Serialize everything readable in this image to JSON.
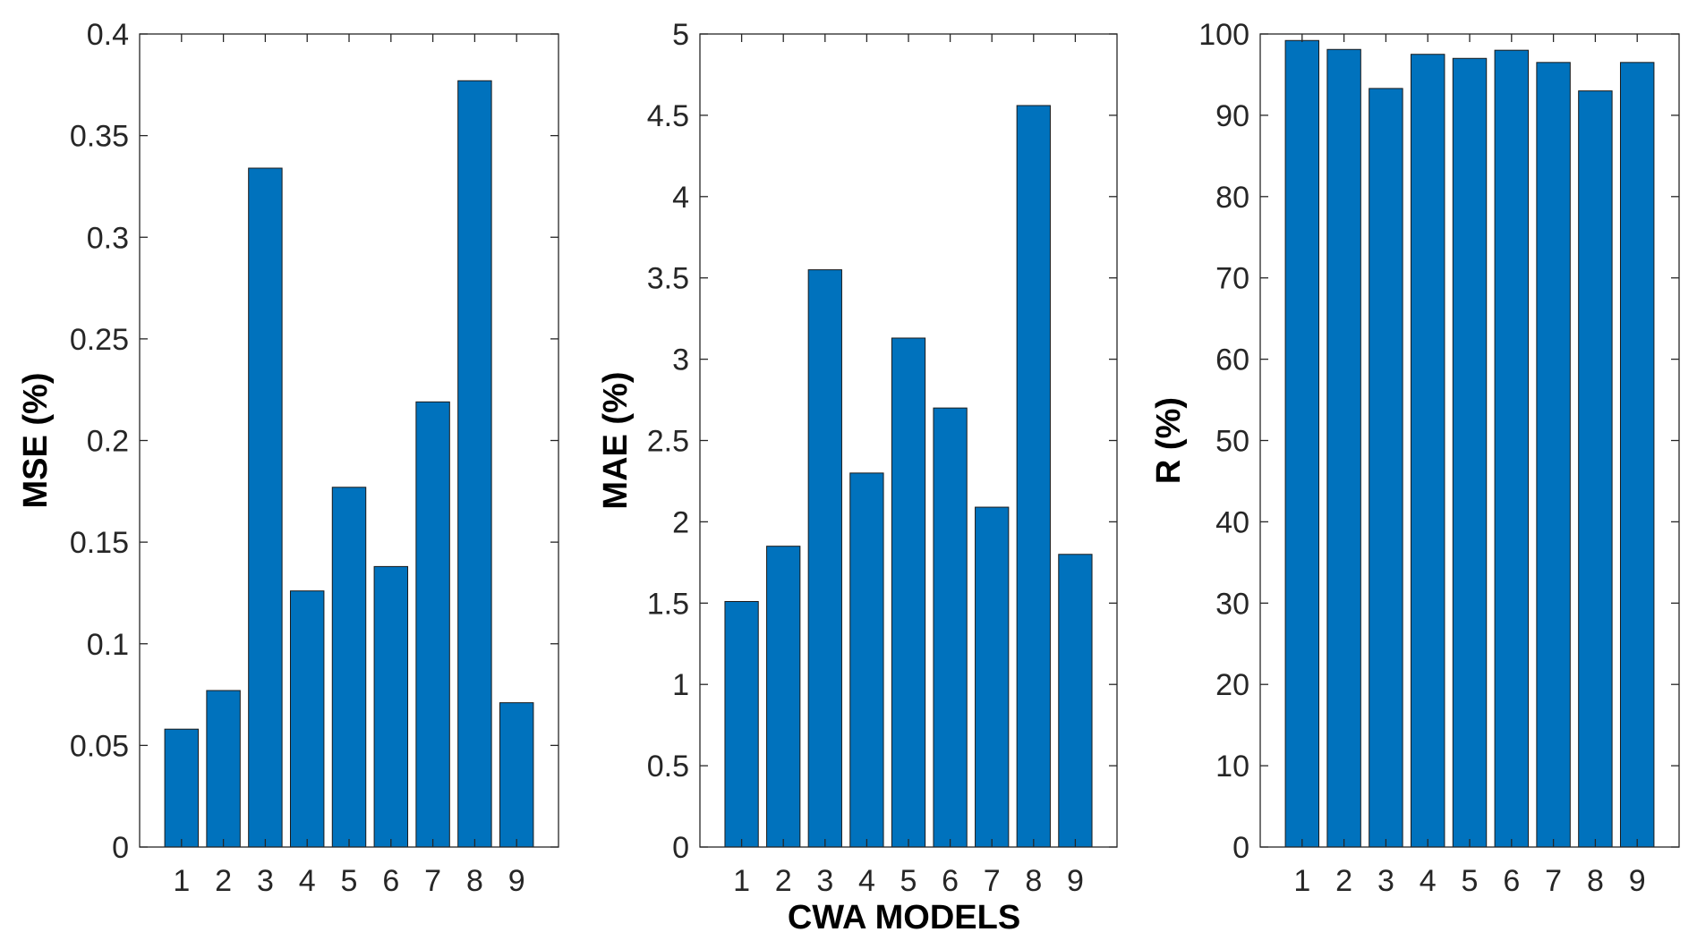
{
  "xlabel": "CWA MODELS",
  "bar_color": "#0072BD",
  "chart_data": [
    {
      "type": "bar",
      "title": "",
      "xlabel": "",
      "ylabel": "MSE (%)",
      "categories": [
        "1",
        "2",
        "3",
        "4",
        "5",
        "6",
        "7",
        "8",
        "9"
      ],
      "values": [
        0.058,
        0.077,
        0.334,
        0.126,
        0.177,
        0.138,
        0.219,
        0.377,
        0.071
      ],
      "ylim": [
        0,
        0.4
      ],
      "yticks": [
        0,
        0.05,
        0.1,
        0.15,
        0.2,
        0.25,
        0.3,
        0.35,
        0.4
      ],
      "ytick_labels": [
        "0",
        "0.05",
        "0.1",
        "0.15",
        "0.2",
        "0.25",
        "0.3",
        "0.35",
        "0.4"
      ],
      "grid": false,
      "legend": "none"
    },
    {
      "type": "bar",
      "title": "",
      "xlabel": "CWA MODELS",
      "ylabel": "MAE (%)",
      "categories": [
        "1",
        "2",
        "3",
        "4",
        "5",
        "6",
        "7",
        "8",
        "9"
      ],
      "values": [
        1.51,
        1.85,
        3.55,
        2.3,
        3.13,
        2.7,
        2.09,
        4.56,
        1.8
      ],
      "ylim": [
        0,
        5
      ],
      "yticks": [
        0,
        0.5,
        1,
        1.5,
        2,
        2.5,
        3,
        3.5,
        4,
        4.5,
        5
      ],
      "ytick_labels": [
        "0",
        "0.5",
        "1",
        "1.5",
        "2",
        "2.5",
        "3",
        "3.5",
        "4",
        "4.5",
        "5"
      ],
      "grid": false,
      "legend": "none"
    },
    {
      "type": "bar",
      "title": "",
      "xlabel": "",
      "ylabel": "R (%)",
      "categories": [
        "1",
        "2",
        "3",
        "4",
        "5",
        "6",
        "7",
        "8",
        "9"
      ],
      "values": [
        99.2,
        98.1,
        93.3,
        97.5,
        97.0,
        98.0,
        96.5,
        93.0,
        96.5
      ],
      "ylim": [
        0,
        100
      ],
      "yticks": [
        0,
        10,
        20,
        30,
        40,
        50,
        60,
        70,
        80,
        90,
        100
      ],
      "ytick_labels": [
        "0",
        "10",
        "20",
        "30",
        "40",
        "50",
        "60",
        "70",
        "80",
        "90",
        "100"
      ],
      "grid": false,
      "legend": "none"
    }
  ]
}
